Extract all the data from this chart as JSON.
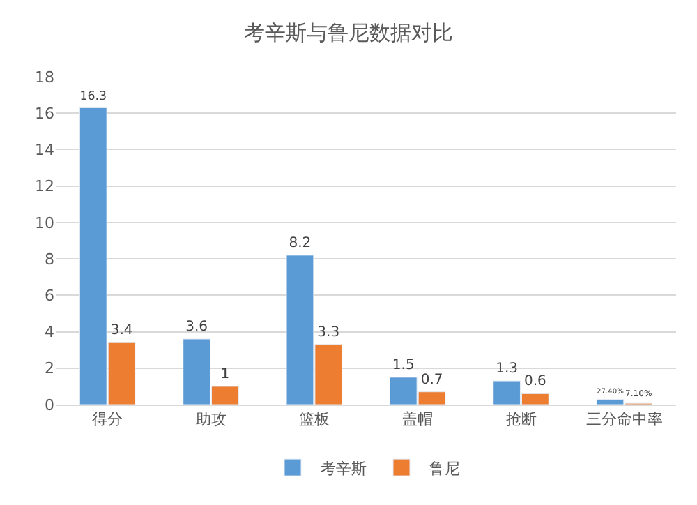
{
  "chart_data": {
    "type": "bar",
    "title": "考辛斯与鲁尼数据对比",
    "categories": [
      "得分",
      "助攻",
      "篮板",
      "盖帽",
      "抢断",
      "三分命中率"
    ],
    "series": [
      {
        "name": "考辛斯",
        "color": "#5b9bd5",
        "values": [
          16.3,
          3.6,
          8.2,
          1.5,
          1.3,
          0.274
        ],
        "value_labels": [
          "16.3",
          "3.6",
          "8.2",
          "1.5",
          "1.3",
          "27.40%"
        ]
      },
      {
        "name": "鲁尼",
        "color": "#ed7d31",
        "values": [
          3.4,
          1,
          3.3,
          0.7,
          0.6,
          0.071
        ],
        "value_labels": [
          "3.4",
          "1",
          "3.3",
          "0.7",
          "0.6",
          "7.10%"
        ]
      }
    ],
    "ylim": [
      0,
      18
    ],
    "yticks": [
      0,
      2,
      4,
      6,
      8,
      10,
      12,
      14,
      16,
      18
    ],
    "grid": "y",
    "legend": "bottom"
  }
}
